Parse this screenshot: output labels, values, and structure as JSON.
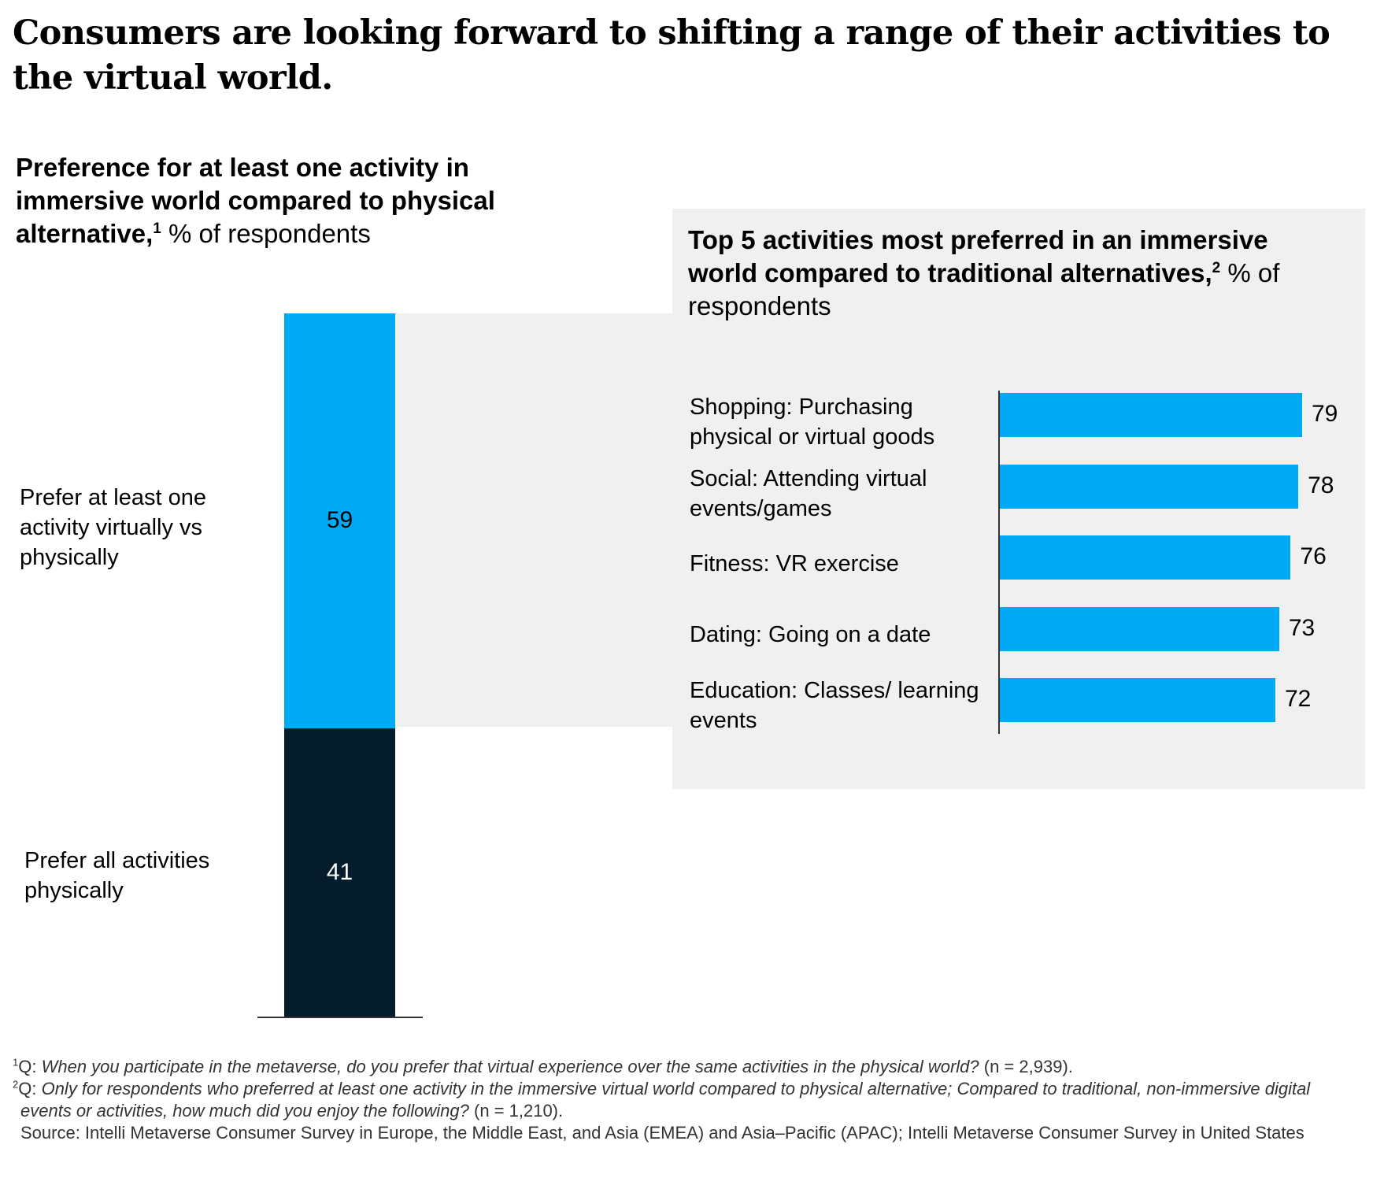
{
  "headline": "Consumers are looking forward to shifting a range of their activities to the virtual world.",
  "colors": {
    "accent_blue": "#00a9f4",
    "dark_navy": "#051c2c",
    "panel_gray": "#f0f0f0"
  },
  "chart_data": [
    {
      "type": "bar",
      "stacked": true,
      "title_bold": "Preference for at least one activity in immersive world compared to physical alternative,",
      "title_sup": "1",
      "title_unit": "% of respondents",
      "categories": [
        "Prefer at least one activity virtually vs physically",
        "Prefer all activities physically"
      ],
      "values": [
        59,
        41
      ],
      "labels": [
        "59",
        "41"
      ]
    },
    {
      "type": "bar",
      "orientation": "horizontal",
      "title_bold": "Top 5 activities most preferred in an immersive world compared to traditional alternatives,",
      "title_sup": "2",
      "title_unit": "% of respondents",
      "categories": [
        "Shopping: Purchasing physical or virtual goods",
        "Social: Attending virtual events/games",
        "Fitness: VR exercise",
        "Dating: Going on a date",
        "Education: Classes/ learning events"
      ],
      "values": [
        79,
        78,
        76,
        73,
        72
      ],
      "labels": [
        "79",
        "78",
        "76",
        "73",
        "72"
      ]
    }
  ],
  "footnotes": {
    "fn1_sup": "1",
    "fn1_prefix": "Q: ",
    "fn1_question": "When you participate in the metaverse, do you prefer that virtual experience over the same activities in the physical world?",
    "fn1_n": " (n = 2,939).",
    "fn2_sup": "2",
    "fn2_prefix": "Q: ",
    "fn2_question": "Only for respondents who preferred at least one activity in the immersive virtual world compared to physical alternative; Compared to traditional, non-immersive digital events or activities, how much did you enjoy the following?",
    "fn2_n": " (n = 1,210).",
    "source": "Source: Intelli Metaverse Consumer Survey in Europe, the Middle East, and Asia (EMEA) and Asia–Pacific (APAC); Intelli Metaverse Consumer Survey in United States"
  }
}
